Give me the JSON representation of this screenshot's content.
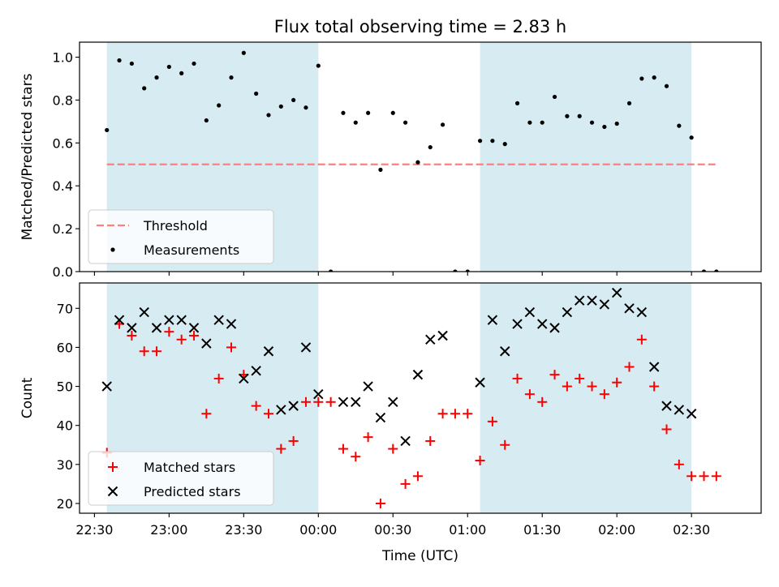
{
  "title": "Flux total observing time = 2.83 h",
  "colors": {
    "band": "#add8e6",
    "threshold": "#ff7f7f",
    "matched": "#ff0000",
    "predicted": "#000000",
    "measurement": "#000000"
  },
  "x_axis": {
    "label": "Time (UTC)",
    "ticks": [
      "22:30",
      "23:00",
      "23:30",
      "00:00",
      "00:30",
      "01:00",
      "01:30",
      "02:00",
      "02:30"
    ],
    "tick_minutes": [
      0,
      30,
      60,
      90,
      120,
      150,
      180,
      210,
      240
    ],
    "range_minutes": [
      -6,
      268
    ]
  },
  "chart_data": [
    {
      "type": "scatter",
      "ylabel": "Matched/Predicted stars",
      "ylim": [
        0,
        1.07
      ],
      "yticks": [
        "0.0",
        "0.2",
        "0.4",
        "0.6",
        "0.8",
        "1.0"
      ],
      "ytick_values": [
        0,
        0.2,
        0.4,
        0.6,
        0.8,
        1.0
      ],
      "shaded_bands_minutes": [
        [
          5,
          90
        ],
        [
          155,
          240
        ]
      ],
      "legend": {
        "position": "lower left",
        "entries": [
          "Threshold",
          "Measurements"
        ]
      },
      "threshold": {
        "name": "Threshold",
        "value": 0.5,
        "x_range_minutes": [
          5,
          250
        ]
      },
      "series": [
        {
          "name": "Measurements",
          "x_minutes": [
            5,
            10,
            15,
            20,
            25,
            30,
            35,
            40,
            45,
            50,
            55,
            60,
            65,
            70,
            75,
            80,
            85,
            90,
            95,
            100,
            105,
            110,
            115,
            120,
            125,
            130,
            135,
            140,
            145,
            150,
            155,
            160,
            165,
            170,
            175,
            180,
            185,
            190,
            195,
            200,
            205,
            210,
            215,
            220,
            225,
            230,
            235,
            240,
            245,
            250
          ],
          "values": [
            0.66,
            0.985,
            0.97,
            0.855,
            0.905,
            0.955,
            0.925,
            0.97,
            0.705,
            0.775,
            0.905,
            1.02,
            0.83,
            0.73,
            0.77,
            0.8,
            0.765,
            0.96,
            0.0,
            0.74,
            0.695,
            0.74,
            0.475,
            0.74,
            0.695,
            0.51,
            0.58,
            0.685,
            0.0,
            0.0,
            0.61,
            0.61,
            0.595,
            0.785,
            0.695,
            0.695,
            0.815,
            0.725,
            0.725,
            0.695,
            0.675,
            0.69,
            0.785,
            0.9,
            0.905,
            0.865,
            0.68,
            0.625,
            0.0,
            0.0
          ]
        }
      ]
    },
    {
      "type": "scatter",
      "ylabel": "Count",
      "ylim": [
        17.5,
        76.5
      ],
      "yticks": [
        "20",
        "30",
        "40",
        "50",
        "60",
        "70"
      ],
      "ytick_values": [
        20,
        30,
        40,
        50,
        60,
        70
      ],
      "shaded_bands_minutes": [
        [
          5,
          90
        ],
        [
          155,
          240
        ]
      ],
      "legend": {
        "position": "lower left",
        "entries": [
          "Matched stars",
          "Predicted stars"
        ]
      },
      "series": [
        {
          "name": "Matched stars",
          "marker": "plus",
          "x_minutes": [
            5,
            10,
            15,
            20,
            25,
            30,
            35,
            40,
            45,
            50,
            55,
            60,
            65,
            70,
            75,
            80,
            85,
            90,
            95,
            100,
            105,
            110,
            115,
            120,
            125,
            130,
            135,
            140,
            145,
            150,
            155,
            160,
            165,
            170,
            175,
            180,
            185,
            190,
            195,
            200,
            205,
            210,
            215,
            220,
            225,
            230,
            235,
            240,
            245,
            250
          ],
          "values": [
            33,
            66,
            63,
            59,
            59,
            64,
            62,
            63,
            43,
            52,
            60,
            53,
            45,
            43,
            34,
            36,
            46,
            46,
            46,
            34,
            32,
            37,
            20,
            34,
            25,
            27,
            36,
            43,
            43,
            43,
            31,
            41,
            35,
            52,
            48,
            46,
            53,
            50,
            52,
            50,
            48,
            51,
            55,
            62,
            50,
            39,
            30,
            27,
            27,
            27
          ]
        },
        {
          "name": "Predicted stars",
          "marker": "x",
          "x_minutes": [
            5,
            10,
            15,
            20,
            25,
            30,
            35,
            40,
            45,
            50,
            55,
            60,
            65,
            70,
            75,
            80,
            85,
            90,
            100,
            105,
            110,
            115,
            120,
            125,
            130,
            135,
            140,
            155,
            160,
            165,
            170,
            175,
            180,
            185,
            190,
            195,
            200,
            205,
            210,
            215,
            220,
            225,
            230,
            235,
            240
          ],
          "values": [
            50,
            67,
            65,
            69,
            65,
            67,
            67,
            65,
            61,
            67,
            66,
            52,
            54,
            59,
            44,
            45,
            60,
            48,
            46,
            46,
            50,
            42,
            46,
            36,
            53,
            62,
            63,
            51,
            67,
            59,
            66,
            69,
            66,
            65,
            69,
            72,
            72,
            71,
            74,
            70,
            69,
            55,
            45,
            44,
            43
          ]
        }
      ]
    }
  ]
}
